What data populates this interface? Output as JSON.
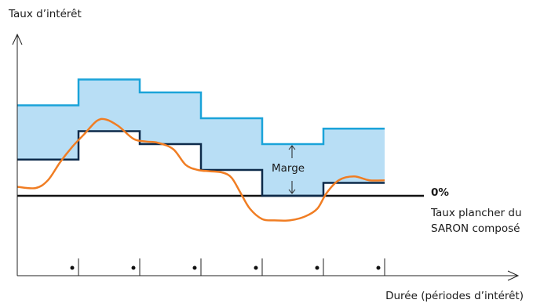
{
  "chart_data": {
    "type": "line",
    "ylabel": "Taux d’intérêt",
    "xlabel": "Durée (périodes d’intérêt)",
    "periods": 6,
    "x_period_boundaries": [
      0,
      1,
      2,
      3,
      4,
      5,
      6
    ],
    "series": [
      {
        "id": "upper",
        "color": "#1aa3d9",
        "step": true,
        "values": [
          3.5,
          4.5,
          4.0,
          3.0,
          2.0,
          2.6
        ]
      },
      {
        "id": "compounded",
        "color": "#0d2a4a",
        "step": true,
        "values": [
          1.4,
          2.5,
          2.0,
          1.0,
          0.0,
          0.5
        ]
      },
      {
        "id": "daily",
        "color": "#f07d23",
        "smooth": true,
        "points": [
          [
            0,
            0.35
          ],
          [
            0.3,
            0.3
          ],
          [
            0.5,
            0.6
          ],
          [
            0.7,
            1.3
          ],
          [
            0.9,
            1.9
          ],
          [
            1.1,
            2.4
          ],
          [
            1.3,
            2.9
          ],
          [
            1.45,
            2.95
          ],
          [
            1.65,
            2.7
          ],
          [
            1.9,
            2.2
          ],
          [
            2.1,
            2.1
          ],
          [
            2.3,
            2.05
          ],
          [
            2.55,
            1.8
          ],
          [
            2.75,
            1.2
          ],
          [
            2.95,
            1.0
          ],
          [
            3.15,
            0.95
          ],
          [
            3.35,
            0.9
          ],
          [
            3.5,
            0.7
          ],
          [
            3.65,
            0.1
          ],
          [
            3.8,
            -0.5
          ],
          [
            4.0,
            -0.9
          ],
          [
            4.2,
            -0.95
          ],
          [
            4.45,
            -0.95
          ],
          [
            4.7,
            -0.8
          ],
          [
            4.9,
            -0.5
          ],
          [
            5.05,
            0.1
          ],
          [
            5.25,
            0.6
          ],
          [
            5.5,
            0.75
          ],
          [
            5.75,
            0.6
          ],
          [
            6.0,
            0.6
          ]
        ]
      }
    ],
    "shaded_band": {
      "between": [
        "upper",
        "compounded"
      ],
      "color": "#b8def5"
    },
    "y_zero_line": true,
    "annotations": {
      "floor_pct": "0%",
      "floor_text": "Taux plancher du SARON composé",
      "spread": "Marge"
    }
  }
}
